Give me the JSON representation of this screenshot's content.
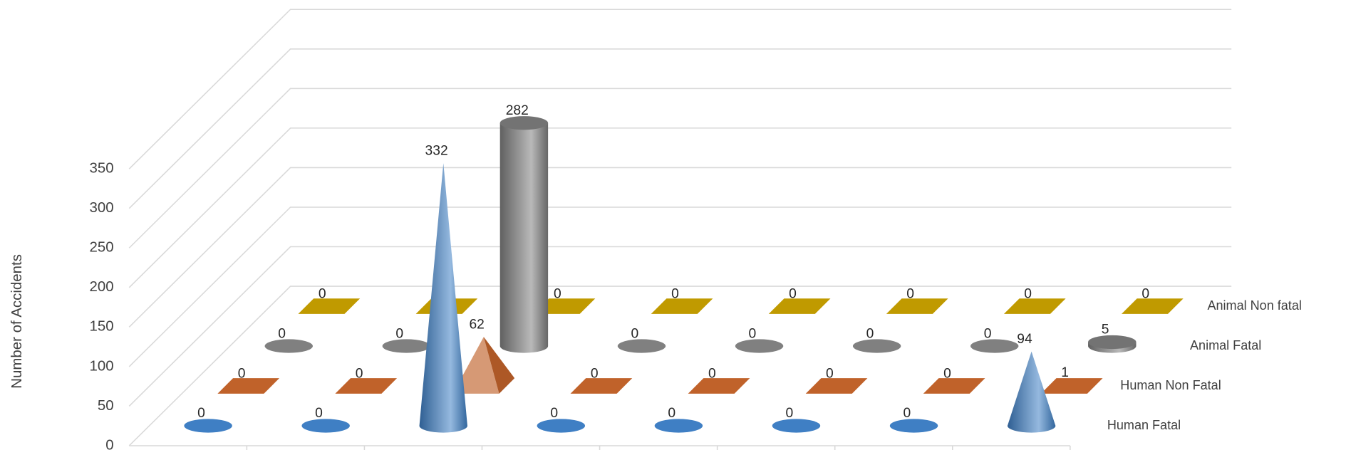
{
  "chart_data": {
    "type": "bar3d",
    "y_label": "Number of Accidents",
    "ylim": [
      0,
      350
    ],
    "yticks": [
      0,
      50,
      100,
      150,
      200,
      250,
      300,
      350
    ],
    "grid": true,
    "series": [
      {
        "name": "Human Fatal",
        "color": "#3f7fc4",
        "shape": "cone",
        "values": [
          0,
          0,
          332,
          0,
          0,
          0,
          0,
          94
        ]
      },
      {
        "name": "Human Non Fatal",
        "color": "#c0622a",
        "shape": "pyramid",
        "values": [
          0,
          0,
          62,
          0,
          0,
          0,
          0,
          1
        ]
      },
      {
        "name": "Animal Fatal",
        "color": "#808080",
        "shape": "cylinder",
        "values": [
          0,
          0,
          282,
          0,
          0,
          0,
          0,
          5
        ]
      },
      {
        "name": "Animal Non fatal",
        "color": "#c09a00",
        "shape": "box",
        "values": [
          0,
          0,
          0,
          0,
          0,
          0,
          0,
          0
        ]
      }
    ]
  }
}
